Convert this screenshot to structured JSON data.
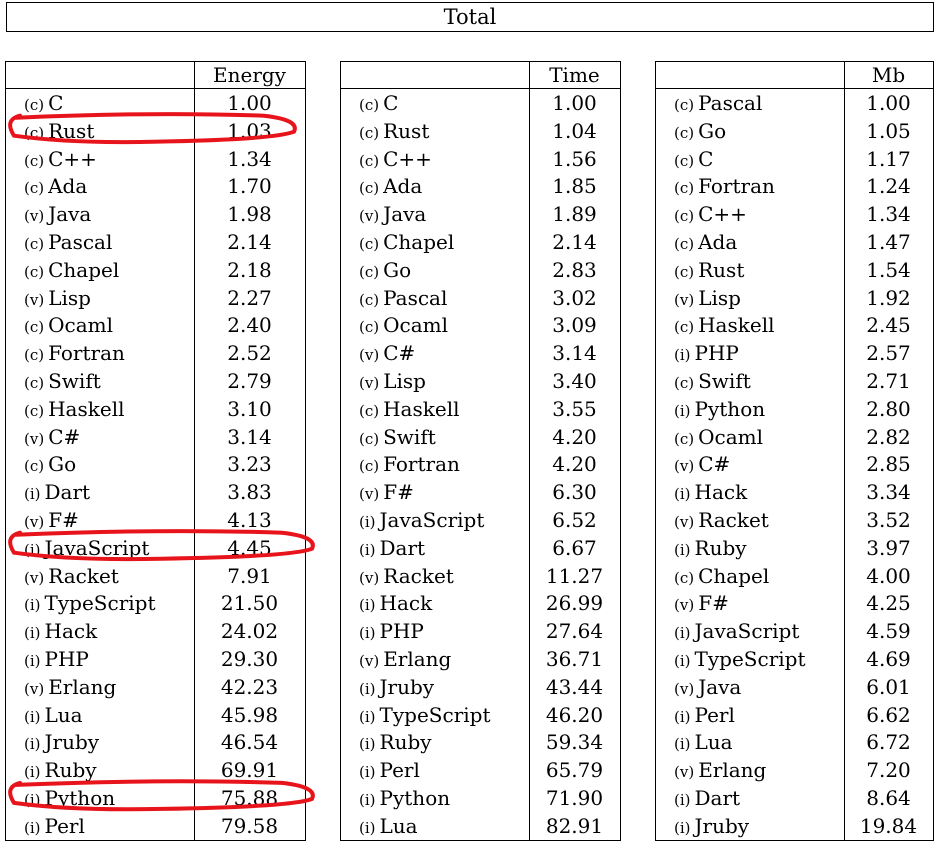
{
  "title": "Total",
  "tables": [
    {
      "header": "Energy",
      "rows": [
        {
          "tag": "(c)",
          "lang": "C",
          "value": "1.00"
        },
        {
          "tag": "(c)",
          "lang": "Rust",
          "value": "1.03"
        },
        {
          "tag": "(c)",
          "lang": "C++",
          "value": "1.34"
        },
        {
          "tag": "(c)",
          "lang": "Ada",
          "value": "1.70"
        },
        {
          "tag": "(v)",
          "lang": "Java",
          "value": "1.98"
        },
        {
          "tag": "(c)",
          "lang": "Pascal",
          "value": "2.14"
        },
        {
          "tag": "(c)",
          "lang": "Chapel",
          "value": "2.18"
        },
        {
          "tag": "(v)",
          "lang": "Lisp",
          "value": "2.27"
        },
        {
          "tag": "(c)",
          "lang": "Ocaml",
          "value": "2.40"
        },
        {
          "tag": "(c)",
          "lang": "Fortran",
          "value": "2.52"
        },
        {
          "tag": "(c)",
          "lang": "Swift",
          "value": "2.79"
        },
        {
          "tag": "(c)",
          "lang": "Haskell",
          "value": "3.10"
        },
        {
          "tag": "(v)",
          "lang": "C#",
          "value": "3.14"
        },
        {
          "tag": "(c)",
          "lang": "Go",
          "value": "3.23"
        },
        {
          "tag": "(i)",
          "lang": "Dart",
          "value": "3.83"
        },
        {
          "tag": "(v)",
          "lang": "F#",
          "value": "4.13"
        },
        {
          "tag": "(i)",
          "lang": "JavaScript",
          "value": "4.45"
        },
        {
          "tag": "(v)",
          "lang": "Racket",
          "value": "7.91"
        },
        {
          "tag": "(i)",
          "lang": "TypeScript",
          "value": "21.50"
        },
        {
          "tag": "(i)",
          "lang": "Hack",
          "value": "24.02"
        },
        {
          "tag": "(i)",
          "lang": "PHP",
          "value": "29.30"
        },
        {
          "tag": "(v)",
          "lang": "Erlang",
          "value": "42.23"
        },
        {
          "tag": "(i)",
          "lang": "Lua",
          "value": "45.98"
        },
        {
          "tag": "(i)",
          "lang": "Jruby",
          "value": "46.54"
        },
        {
          "tag": "(i)",
          "lang": "Ruby",
          "value": "69.91"
        },
        {
          "tag": "(i)",
          "lang": "Python",
          "value": "75.88"
        },
        {
          "tag": "(i)",
          "lang": "Perl",
          "value": "79.58"
        }
      ]
    },
    {
      "header": "Time",
      "rows": [
        {
          "tag": "(c)",
          "lang": "C",
          "value": "1.00"
        },
        {
          "tag": "(c)",
          "lang": "Rust",
          "value": "1.04"
        },
        {
          "tag": "(c)",
          "lang": "C++",
          "value": "1.56"
        },
        {
          "tag": "(c)",
          "lang": "Ada",
          "value": "1.85"
        },
        {
          "tag": "(v)",
          "lang": "Java",
          "value": "1.89"
        },
        {
          "tag": "(c)",
          "lang": "Chapel",
          "value": "2.14"
        },
        {
          "tag": "(c)",
          "lang": "Go",
          "value": "2.83"
        },
        {
          "tag": "(c)",
          "lang": "Pascal",
          "value": "3.02"
        },
        {
          "tag": "(c)",
          "lang": "Ocaml",
          "value": "3.09"
        },
        {
          "tag": "(v)",
          "lang": "C#",
          "value": "3.14"
        },
        {
          "tag": "(v)",
          "lang": "Lisp",
          "value": "3.40"
        },
        {
          "tag": "(c)",
          "lang": "Haskell",
          "value": "3.55"
        },
        {
          "tag": "(c)",
          "lang": "Swift",
          "value": "4.20"
        },
        {
          "tag": "(c)",
          "lang": "Fortran",
          "value": "4.20"
        },
        {
          "tag": "(v)",
          "lang": "F#",
          "value": "6.30"
        },
        {
          "tag": "(i)",
          "lang": "JavaScript",
          "value": "6.52"
        },
        {
          "tag": "(i)",
          "lang": "Dart",
          "value": "6.67"
        },
        {
          "tag": "(v)",
          "lang": "Racket",
          "value": "11.27"
        },
        {
          "tag": "(i)",
          "lang": "Hack",
          "value": "26.99"
        },
        {
          "tag": "(i)",
          "lang": "PHP",
          "value": "27.64"
        },
        {
          "tag": "(v)",
          "lang": "Erlang",
          "value": "36.71"
        },
        {
          "tag": "(i)",
          "lang": "Jruby",
          "value": "43.44"
        },
        {
          "tag": "(i)",
          "lang": "TypeScript",
          "value": "46.20"
        },
        {
          "tag": "(i)",
          "lang": "Ruby",
          "value": "59.34"
        },
        {
          "tag": "(i)",
          "lang": "Perl",
          "value": "65.79"
        },
        {
          "tag": "(i)",
          "lang": "Python",
          "value": "71.90"
        },
        {
          "tag": "(i)",
          "lang": "Lua",
          "value": "82.91"
        }
      ]
    },
    {
      "header": "Mb",
      "rows": [
        {
          "tag": "(c)",
          "lang": "Pascal",
          "value": "1.00"
        },
        {
          "tag": "(c)",
          "lang": "Go",
          "value": "1.05"
        },
        {
          "tag": "(c)",
          "lang": "C",
          "value": "1.17"
        },
        {
          "tag": "(c)",
          "lang": "Fortran",
          "value": "1.24"
        },
        {
          "tag": "(c)",
          "lang": "C++",
          "value": "1.34"
        },
        {
          "tag": "(c)",
          "lang": "Ada",
          "value": "1.47"
        },
        {
          "tag": "(c)",
          "lang": "Rust",
          "value": "1.54"
        },
        {
          "tag": "(v)",
          "lang": "Lisp",
          "value": "1.92"
        },
        {
          "tag": "(c)",
          "lang": "Haskell",
          "value": "2.45"
        },
        {
          "tag": "(i)",
          "lang": "PHP",
          "value": "2.57"
        },
        {
          "tag": "(c)",
          "lang": "Swift",
          "value": "2.71"
        },
        {
          "tag": "(i)",
          "lang": "Python",
          "value": "2.80"
        },
        {
          "tag": "(c)",
          "lang": "Ocaml",
          "value": "2.82"
        },
        {
          "tag": "(v)",
          "lang": "C#",
          "value": "2.85"
        },
        {
          "tag": "(i)",
          "lang": "Hack",
          "value": "3.34"
        },
        {
          "tag": "(v)",
          "lang": "Racket",
          "value": "3.52"
        },
        {
          "tag": "(i)",
          "lang": "Ruby",
          "value": "3.97"
        },
        {
          "tag": "(c)",
          "lang": "Chapel",
          "value": "4.00"
        },
        {
          "tag": "(v)",
          "lang": "F#",
          "value": "4.25"
        },
        {
          "tag": "(i)",
          "lang": "JavaScript",
          "value": "4.59"
        },
        {
          "tag": "(i)",
          "lang": "TypeScript",
          "value": "4.69"
        },
        {
          "tag": "(v)",
          "lang": "Java",
          "value": "6.01"
        },
        {
          "tag": "(i)",
          "lang": "Perl",
          "value": "6.62"
        },
        {
          "tag": "(i)",
          "lang": "Lua",
          "value": "6.72"
        },
        {
          "tag": "(v)",
          "lang": "Erlang",
          "value": "7.20"
        },
        {
          "tag": "(i)",
          "lang": "Dart",
          "value": "8.64"
        },
        {
          "tag": "(i)",
          "lang": "Jruby",
          "value": "19.84"
        }
      ]
    }
  ],
  "highlights": {
    "color": "#e8141c",
    "table": 0,
    "rows": [
      "Rust",
      "JavaScript",
      "Python"
    ]
  }
}
